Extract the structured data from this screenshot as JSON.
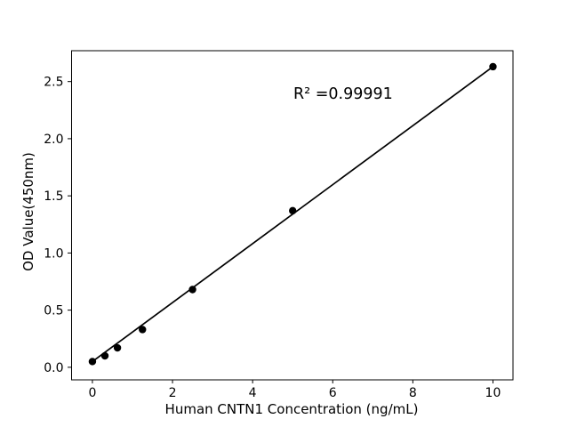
{
  "figure": {
    "background": "#ffffff"
  },
  "chart_data": {
    "type": "scatter",
    "title": "",
    "xlabel": "Human CNTN1 Concentration (ng/mL)",
    "ylabel": "OD Value(450nm)",
    "annotation": "R² =0.99991",
    "r_squared": 0.99991,
    "x": [
      0,
      0.3125,
      0.625,
      1.25,
      2.5,
      5,
      10
    ],
    "y": [
      0.05,
      0.1,
      0.17,
      0.33,
      0.68,
      1.37,
      2.63
    ],
    "series": [
      {
        "name": "standard-curve",
        "marker": "circle",
        "has_fit_line": true
      }
    ],
    "fit_line": {
      "x": [
        0,
        10
      ],
      "y": [
        0.05,
        2.63
      ]
    },
    "xlim": [
      -0.52,
      10.5
    ],
    "ylim": [
      -0.11,
      2.77
    ],
    "xticks": {
      "values": [
        0,
        2,
        4,
        6,
        8,
        10
      ],
      "labels": [
        "0",
        "2",
        "4",
        "6",
        "8",
        "10"
      ]
    },
    "yticks": {
      "values": [
        0,
        0.5,
        1.0,
        1.5,
        2.0,
        2.5
      ],
      "labels": [
        "0.0",
        "0.5",
        "1.0",
        "1.5",
        "2.0",
        "2.5"
      ]
    },
    "grid": false,
    "legend": null,
    "colors": {
      "marker": "#000000",
      "line": "#000000",
      "spine": "#000000",
      "text": "#000000",
      "background": "#ffffff"
    }
  }
}
